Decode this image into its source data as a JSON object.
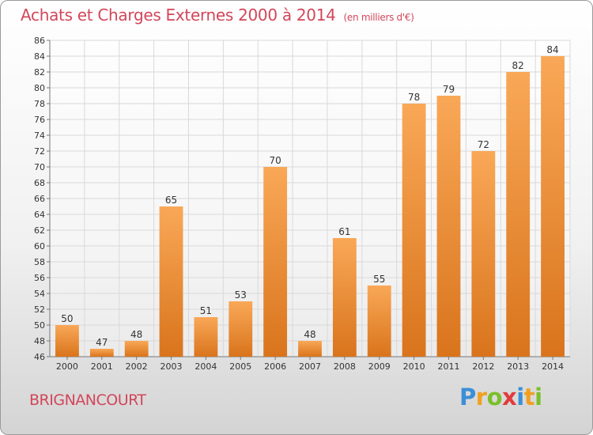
{
  "title": "Achats et Charges Externes 2000 à 2014",
  "title_unit": "(en milliers d'€)",
  "town": "BRIGNANCOURT",
  "logo_text": "Proxiti",
  "colors": {
    "title": "#d2465a",
    "bar_light": "#f9a857",
    "bar_dark": "#d9741c",
    "grid": "#d9d9d9"
  },
  "chart_data": {
    "type": "bar",
    "title": "Achats et Charges Externes 2000 à 2014",
    "subtitle": "(en milliers d'€)",
    "categories": [
      "2000",
      "2001",
      "2002",
      "2003",
      "2004",
      "2005",
      "2006",
      "2007",
      "2008",
      "2009",
      "2010",
      "2011",
      "2012",
      "2013",
      "2014"
    ],
    "values": [
      50,
      47,
      48,
      65,
      51,
      53,
      70,
      48,
      61,
      55,
      78,
      79,
      72,
      82,
      84
    ],
    "ylim": [
      46,
      86
    ],
    "yticks": [
      46,
      48,
      50,
      52,
      54,
      56,
      58,
      60,
      62,
      64,
      66,
      68,
      70,
      72,
      74,
      76,
      78,
      80,
      82,
      84,
      86
    ],
    "grid": true,
    "legend": "none",
    "xlabel": "",
    "ylabel": ""
  }
}
